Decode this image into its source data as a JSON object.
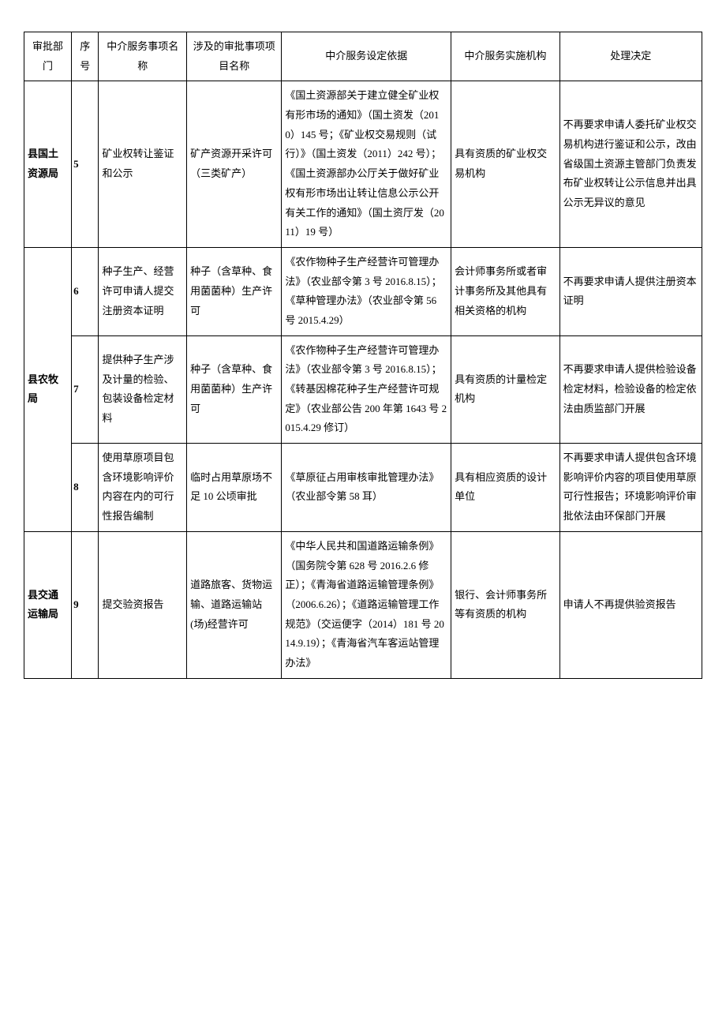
{
  "columns": {
    "dept": "审批部门",
    "seq": "序号",
    "service": "中介服务事项名称",
    "approval": "涉及的审批事项项目名称",
    "basis": "中介服务设定依据",
    "agency": "中介服务实施机构",
    "decision": "处理决定"
  },
  "rows": [
    {
      "dept": "县国土资源局",
      "dept_rowspan": 1,
      "seq": "5",
      "service": "矿业权转让鉴证和公示",
      "approval": "矿产资源开采许可（三类矿产）",
      "basis": "《国土资源部关于建立健全矿业权有形市场的通知》（国土资发（2010）145 号；《矿业权交易规则（试行）》（国土资发（2011）242 号）；《国土资源部办公厅关于做好矿业权有形市场出让转让信息公示公开有关工作的通知》（国土资厅发（2011）19 号）",
      "agency": "具有资质的矿业权交易机构",
      "decision": "不再要求申请人委托矿业权交易机构进行鉴证和公示，改由省级国土资源主管部门负责发布矿业权转让公示信息并出具公示无异议的意见"
    },
    {
      "dept": "县农牧局",
      "dept_rowspan": 3,
      "seq": "6",
      "service": "种子生产、经营许可申请人提交注册资本证明",
      "approval": "种子（含草种、食用菌菌种）生产许可",
      "basis": "《农作物种子生产经营许可管理办法》（农业部令第 3 号 2016.8.15）；《草种管理办法》（农业部令第 56 号 2015.4.29）",
      "agency": "会计师事务所或者审计事务所及其他具有相关资格的机构",
      "decision": "不再要求申请人提供注册资本证明"
    },
    {
      "seq": "7",
      "service": "提供种子生产涉及计量的检验、包装设备检定材料",
      "approval": "种子（含草种、食用菌菌种）生产许可",
      "basis": "《农作物种子生产经营许可管理办法》（农业部令第 3 号 2016.8.15）；《转基因棉花种子生产经营许可规定》（农业部公告 200 年第 1643 号 2015.4.29 修订）",
      "agency": "具有资质的计量检定机构",
      "decision": "不再要求申请人提供检验设备检定材料，检验设备的检定依法由质监部门开展"
    },
    {
      "seq": "8",
      "service": "使用草原项目包含环境影响评价内容在内的可行性报告编制",
      "approval": "临时占用草原场不足 10 公顷审批",
      "basis": "《草原征占用审核审批管理办法》（农业部令第 58 耳）",
      "agency": "具有相应资质的设计单位",
      "decision": "不再要求申请人提供包含环境影响评价内容的项目使用草原可行性报告；环境影响评价审批依法由环保部门开展"
    },
    {
      "dept": "县交通运输局",
      "dept_rowspan": 1,
      "seq": "9",
      "service": "提交验资报告",
      "approval": "道路旅客、货物运输、道路运输站(场)经营许可",
      "basis": "《中华人民共和国道路运输条例》（国务院令第 628 号 2016.2.6 修正）；《青海省道路运输管理条例》（2006.6.26）；《道路运输管理工作规范》（交运便字（2014）181 号 2014.9.19）；《青海省汽车客运站管理办法》",
      "agency": "银行、会计师事务所等有资质的机构",
      "decision": "申请人不再提供验资报告"
    }
  ]
}
